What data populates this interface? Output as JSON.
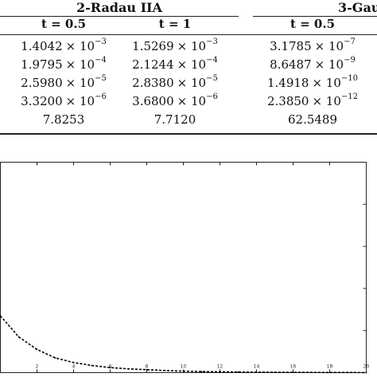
{
  "table": {
    "group_headers": [
      "2-Radau IIA",
      "3-Gau"
    ],
    "column_headers": [
      "t = 0.5",
      "t = 1",
      "t = 0.5"
    ],
    "rows": [
      [
        {
          "m": "1.4042",
          "e": "−3"
        },
        {
          "m": "1.5269",
          "e": "−3"
        },
        {
          "m": "3.1785",
          "e": "−7"
        }
      ],
      [
        {
          "m": "1.9795",
          "e": "−4"
        },
        {
          "m": "2.1244",
          "e": "−4"
        },
        {
          "m": "8.6487",
          "e": "−9"
        }
      ],
      [
        {
          "m": "2.5980",
          "e": "−5"
        },
        {
          "m": "2.8380",
          "e": "−5"
        },
        {
          "m": "1.4918",
          "e": "−10"
        }
      ],
      [
        {
          "m": "3.3200",
          "e": "−6"
        },
        {
          "m": "3.6800",
          "e": "−6"
        },
        {
          "m": "2.3850",
          "e": "−12"
        }
      ],
      [
        {
          "m": "7.8253"
        },
        {
          "m": "7.7120"
        },
        {
          "m": "62.5489"
        }
      ]
    ],
    "times_symbol": "× 10"
  },
  "chart_data": {
    "type": "line",
    "title": "",
    "xlabel": "",
    "ylabel": "",
    "xlim": [
      0,
      20
    ],
    "x_ticks": [
      "2",
      "4",
      "6",
      "8",
      "10",
      "12",
      "14",
      "16",
      "18",
      "20"
    ],
    "grid": false,
    "series": [
      {
        "line_style": "dashed",
        "color": "#000000",
        "x": [
          0,
          1,
          2,
          3,
          4,
          5,
          6,
          7,
          8,
          9,
          10,
          11,
          12,
          13,
          14,
          15,
          16,
          17,
          18,
          19,
          20
        ],
        "y": [
          0.135,
          0.085,
          0.055,
          0.035,
          0.024,
          0.017,
          0.012,
          0.009,
          0.007,
          0.005,
          0.0035,
          0.0025,
          0.002,
          0.0015,
          0.0011,
          0.0009,
          0.0007,
          0.0005,
          0.0004,
          0.0003,
          0.0002
        ]
      }
    ]
  }
}
